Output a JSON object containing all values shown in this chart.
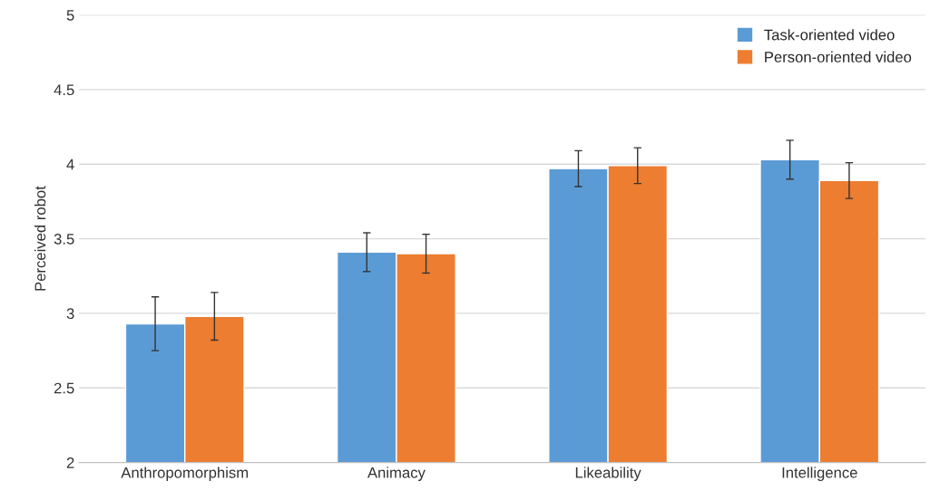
{
  "chart_data": {
    "type": "bar",
    "ylabel": "Perceived robot",
    "categories": [
      "Anthropomorphism",
      "Animacy",
      "Likeability",
      "Intelligence"
    ],
    "series": [
      {
        "name": "Task-oriented video",
        "color": "#5b9bd5",
        "values": [
          2.93,
          3.41,
          3.97,
          4.03
        ],
        "errors": [
          0.18,
          0.13,
          0.12,
          0.13
        ]
      },
      {
        "name": "Person-oriented video",
        "color": "#ed7d31",
        "values": [
          2.98,
          3.4,
          3.99,
          3.89
        ],
        "errors": [
          0.16,
          0.13,
          0.12,
          0.12
        ]
      }
    ],
    "ylim": [
      2,
      5
    ],
    "yticks": [
      2,
      2.5,
      3,
      3.5,
      4,
      4.5,
      5
    ],
    "grid": "y",
    "legend": "top right"
  }
}
